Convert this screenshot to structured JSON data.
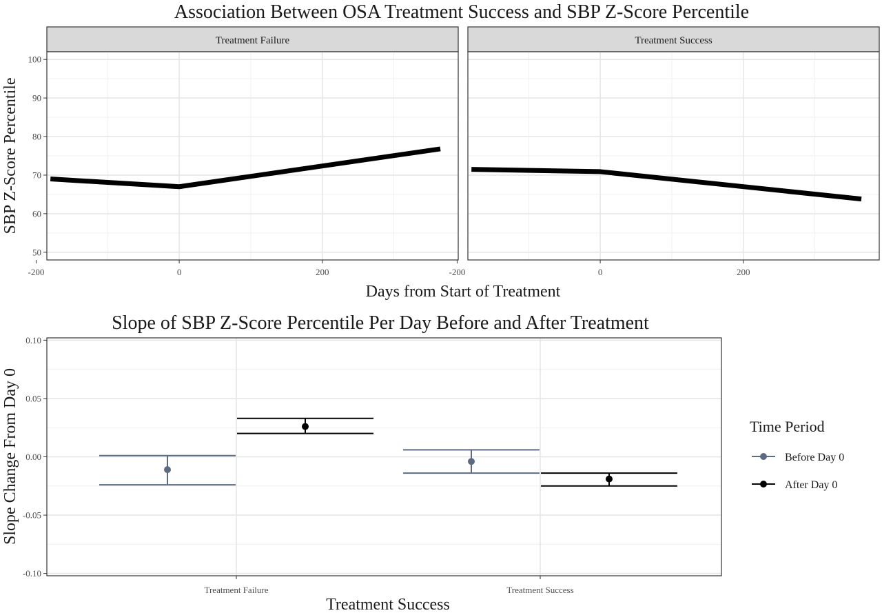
{
  "chart_data": [
    {
      "type": "line",
      "title": "Association Between OSA Treatment Success and SBP Z-Score Percentile",
      "xlabel": "Days from Start of Treatment",
      "ylabel": "SBP Z-Score Percentile",
      "xlim": [
        -185,
        390
      ],
      "ylim": [
        48,
        102
      ],
      "xticks": [
        -200,
        0,
        200
      ],
      "yticks": [
        50,
        60,
        70,
        80,
        90,
        100
      ],
      "grid": true,
      "facets": [
        {
          "label": "Treatment Failure",
          "points": [
            {
              "x": -180,
              "y": 69.0
            },
            {
              "x": 0,
              "y": 67.0
            },
            {
              "x": 365,
              "y": 76.8
            }
          ]
        },
        {
          "label": "Treatment Success",
          "points": [
            {
              "x": -180,
              "y": 71.5
            },
            {
              "x": 0,
              "y": 70.9
            },
            {
              "x": 365,
              "y": 63.8
            }
          ]
        }
      ],
      "line_color": "#000000"
    },
    {
      "type": "scatter",
      "title": "Slope of SBP Z-Score Percentile Per Day Before and After Treatment",
      "xlabel": "Treatment Success",
      "ylabel": "Slope Change From Day 0",
      "ylim": [
        -0.102,
        0.102
      ],
      "yticks": [
        -0.1,
        -0.05,
        0.0,
        0.05,
        0.1
      ],
      "ytick_labels": [
        "-0.10",
        "-0.05",
        "0.00",
        "0.05",
        "0.10"
      ],
      "categories": [
        "Treatment Failure",
        "Treatment Success"
      ],
      "grid": true,
      "legend": {
        "title": "Time Period",
        "position": "right",
        "entries": [
          {
            "name": "Before Day 0",
            "color": "#5c6b82"
          },
          {
            "name": "After Day 0",
            "color": "#000000"
          }
        ]
      },
      "series": [
        {
          "name": "Before Day 0",
          "color": "#5c6b82",
          "points": [
            {
              "category": "Treatment Failure",
              "estimate": -0.011,
              "lower": -0.024,
              "upper": 0.001
            },
            {
              "category": "Treatment Success",
              "estimate": -0.004,
              "lower": -0.014,
              "upper": 0.006
            }
          ]
        },
        {
          "name": "After Day 0",
          "color": "#000000",
          "points": [
            {
              "category": "Treatment Failure",
              "estimate": 0.026,
              "lower": 0.02,
              "upper": 0.033
            },
            {
              "category": "Treatment Success",
              "estimate": -0.019,
              "lower": -0.025,
              "upper": -0.014
            }
          ]
        }
      ]
    }
  ]
}
